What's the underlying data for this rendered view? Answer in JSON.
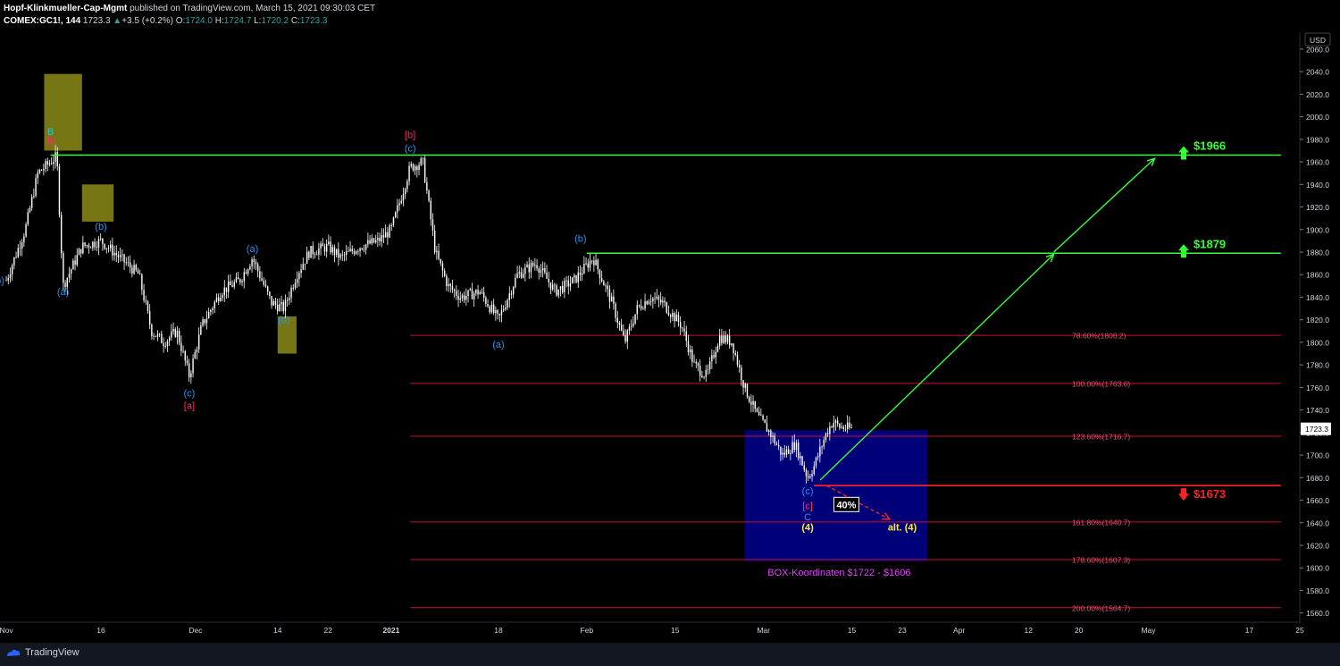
{
  "header": {
    "line1": "Hopf-Klinkmueller-Cap-Mgmt published on TradingView.com, March 15, 2021 09:30:03 CET",
    "publisher": "Hopf-Klinkmueller-Cap-Mgmt",
    "published": "published on TradingView.com, March 15, 2021 09:30:03 CET",
    "symbol": "COMEX:GC1!, 144",
    "last": "1723.3",
    "change": "+3.5 (+0.2%)",
    "o_label": "O:",
    "o": "1724.0",
    "h_label": "H:",
    "h": "1724.7",
    "l_label": "L:",
    "l": "1720.2",
    "c_label": "C:",
    "c": "1723.3"
  },
  "footer": {
    "brand": "TradingView"
  },
  "colors": {
    "candles": "#ffffff",
    "resistance": "#33ff33",
    "support": "#ff2222",
    "fib": "#c8102e",
    "box": "#000080",
    "yellow_box": "#8b8b17",
    "wave_blue": "#2196f3",
    "wave_red": "#ff2e63",
    "wave_yellow": "#ffeb3b",
    "box_text": "#e040fb"
  },
  "chart_data": {
    "type": "candlestick",
    "symbol": "COMEX:GC1!",
    "currency": "USD",
    "y_range": [
      1555,
      2075
    ],
    "y_ticks": [
      2060,
      2040,
      2020,
      2000,
      1980,
      1960,
      1940,
      1920,
      1900,
      1880,
      1860,
      1840,
      1820,
      1800,
      1780,
      1760,
      1740,
      1720,
      1700,
      1680,
      1660,
      1640,
      1620,
      1600,
      1580,
      1560
    ],
    "x_range": [
      "2020-10-31",
      "2021-05-25"
    ],
    "x_ticks": [
      {
        "date": "2020-11-01",
        "label": "Nov"
      },
      {
        "date": "2020-11-16",
        "label": "16"
      },
      {
        "date": "2020-12-01",
        "label": "Dec"
      },
      {
        "date": "2020-12-14",
        "label": "14"
      },
      {
        "date": "2020-12-22",
        "label": "22"
      },
      {
        "date": "2021-01-01",
        "label": "2021"
      },
      {
        "date": "2021-01-18",
        "label": "18"
      },
      {
        "date": "2021-02-01",
        "label": "Feb"
      },
      {
        "date": "2021-02-15",
        "label": "15"
      },
      {
        "date": "2021-03-01",
        "label": "Mar"
      },
      {
        "date": "2021-03-15",
        "label": "15"
      },
      {
        "date": "2021-03-23",
        "label": "23"
      },
      {
        "date": "2021-04-01",
        "label": "Apr"
      },
      {
        "date": "2021-04-12",
        "label": "12"
      },
      {
        "date": "2021-04-20",
        "label": "20"
      },
      {
        "date": "2021-05-01",
        "label": "May"
      },
      {
        "date": "2021-05-17",
        "label": "17"
      },
      {
        "date": "2021-05-25",
        "label": "25"
      }
    ],
    "price_path": [
      [
        "2020-11-01",
        1855
      ],
      [
        "2020-11-04",
        1900
      ],
      [
        "2020-11-06",
        1950
      ],
      [
        "2020-11-09",
        1965
      ],
      [
        "2020-11-10",
        1850
      ],
      [
        "2020-11-13",
        1885
      ],
      [
        "2020-11-16",
        1890
      ],
      [
        "2020-11-19",
        1875
      ],
      [
        "2020-11-22",
        1860
      ],
      [
        "2020-11-24",
        1810
      ],
      [
        "2020-11-26",
        1800
      ],
      [
        "2020-11-28",
        1810
      ],
      [
        "2020-11-30",
        1770
      ],
      [
        "2020-12-02",
        1815
      ],
      [
        "2020-12-05",
        1845
      ],
      [
        "2020-12-08",
        1855
      ],
      [
        "2020-12-10",
        1875
      ],
      [
        "2020-12-13",
        1835
      ],
      [
        "2020-12-15",
        1830
      ],
      [
        "2020-12-17",
        1860
      ],
      [
        "2020-12-19",
        1880
      ],
      [
        "2020-12-22",
        1885
      ],
      [
        "2020-12-24",
        1875
      ],
      [
        "2020-12-27",
        1885
      ],
      [
        "2020-12-30",
        1890
      ],
      [
        "2021-01-01",
        1900
      ],
      [
        "2021-01-04",
        1955
      ],
      [
        "2021-01-06",
        1960
      ],
      [
        "2021-01-08",
        1880
      ],
      [
        "2021-01-10",
        1850
      ],
      [
        "2021-01-12",
        1840
      ],
      [
        "2021-01-15",
        1845
      ],
      [
        "2021-01-18",
        1820
      ],
      [
        "2021-01-21",
        1860
      ],
      [
        "2021-01-24",
        1870
      ],
      [
        "2021-01-27",
        1845
      ],
      [
        "2021-01-30",
        1855
      ],
      [
        "2021-02-02",
        1875
      ],
      [
        "2021-02-05",
        1835
      ],
      [
        "2021-02-07",
        1800
      ],
      [
        "2021-02-09",
        1830
      ],
      [
        "2021-02-11",
        1840
      ],
      [
        "2021-02-13",
        1835
      ],
      [
        "2021-02-16",
        1815
      ],
      [
        "2021-02-18",
        1780
      ],
      [
        "2021-02-20",
        1770
      ],
      [
        "2021-02-22",
        1805
      ],
      [
        "2021-02-24",
        1800
      ],
      [
        "2021-02-26",
        1760
      ],
      [
        "2021-02-28",
        1735
      ],
      [
        "2021-03-02",
        1720
      ],
      [
        "2021-03-04",
        1700
      ],
      [
        "2021-03-06",
        1710
      ],
      [
        "2021-03-08",
        1680
      ],
      [
        "2021-03-09",
        1690
      ],
      [
        "2021-03-11",
        1720
      ],
      [
        "2021-03-12",
        1730
      ],
      [
        "2021-03-13",
        1725
      ],
      [
        "2021-03-15",
        1723.3
      ]
    ],
    "horizontal_lines": [
      {
        "price": 1966,
        "from": "2020-11-08",
        "to": "2021-05-22",
        "color": "#33ff33",
        "label": "$1966",
        "arrow": "up"
      },
      {
        "price": 1879,
        "from": "2021-02-01",
        "to": "2021-05-22",
        "color": "#33ff33",
        "label": "$1879",
        "arrow": "up"
      },
      {
        "price": 1673,
        "from": "2021-03-09",
        "to": "2021-05-22",
        "color": "#ff2222",
        "label": "$1673",
        "arrow": "down"
      }
    ],
    "fib_levels": [
      {
        "label": "78.60%(1806.2)",
        "price": 1806.2
      },
      {
        "label": "100.00%(1763.6)",
        "price": 1763.6
      },
      {
        "label": "123.60%(1716.7)",
        "price": 1716.7
      },
      {
        "label": "161.80%(1640.7)",
        "price": 1640.7
      },
      {
        "label": "178.60%(1607.3)",
        "price": 1607.3
      },
      {
        "label": "200.00%(1564.7)",
        "price": 1564.7
      }
    ],
    "fib_from": "2021-01-04",
    "fib_to": "2021-05-22",
    "projection_arrows": [
      {
        "from": [
          "2021-03-10",
          1678
        ],
        "to": [
          "2021-04-16",
          1878
        ],
        "color": "#33ff33"
      },
      {
        "from": [
          "2021-04-16",
          1880
        ],
        "to": [
          "2021-05-02",
          1963
        ],
        "color": "#33ff33"
      },
      {
        "from": [
          "2021-03-11",
          1673
        ],
        "to": [
          "2021-03-21",
          1643
        ],
        "color": "#ff2222",
        "dashed": true
      }
    ],
    "boxes": [
      {
        "from": [
          "2021-02-26",
          1722
        ],
        "to": [
          "2021-03-27",
          1606
        ],
        "color": "#000080"
      },
      {
        "from": [
          "2020-11-07",
          2038
        ],
        "to": [
          "2020-11-13",
          1970
        ],
        "color": "#8b8b17"
      },
      {
        "from": [
          "2020-11-13",
          1940
        ],
        "to": [
          "2020-11-18",
          1907
        ],
        "color": "#8b8b17"
      },
      {
        "from": [
          "2020-12-14",
          1823
        ],
        "to": [
          "2020-12-17",
          1790
        ],
        "color": "#8b8b17"
      }
    ],
    "annotations": [
      {
        "text": "b)",
        "date": "2020-10-31",
        "price": 1852,
        "color": "#2196f3"
      },
      {
        "text": "B",
        "date": "2020-11-08",
        "price": 1984,
        "color": "#26c6da"
      },
      {
        "text": "[b]",
        "date": "2020-11-08",
        "price": 1976,
        "color": "#ff2e63"
      },
      {
        "text": "(a)",
        "date": "2020-11-10",
        "price": 1842,
        "color": "#2196f3"
      },
      {
        "text": "(b)",
        "date": "2020-11-16",
        "price": 1900,
        "color": "#2196f3"
      },
      {
        "text": "(c)",
        "date": "2020-11-30",
        "price": 1752,
        "color": "#2196f3"
      },
      {
        "text": "[a]",
        "date": "2020-11-30",
        "price": 1741,
        "color": "#ff2e63"
      },
      {
        "text": "(a)",
        "date": "2020-12-10",
        "price": 1880,
        "color": "#2196f3"
      },
      {
        "text": "(b)",
        "date": "2020-12-15",
        "price": 1817,
        "color": "#2196f3"
      },
      {
        "text": "[b]",
        "date": "2021-01-04",
        "price": 1981,
        "color": "#ff2e63"
      },
      {
        "text": "(c)",
        "date": "2021-01-04",
        "price": 1969,
        "color": "#2196f3"
      },
      {
        "text": "(a)",
        "date": "2021-01-18",
        "price": 1795,
        "color": "#2196f3"
      },
      {
        "text": "(b)",
        "date": "2021-01-31",
        "price": 1889,
        "color": "#2196f3"
      },
      {
        "text": "(c)",
        "date": "2021-03-08",
        "price": 1665,
        "color": "#2196f3"
      },
      {
        "text": "[c]",
        "date": "2021-03-08",
        "price": 1652,
        "color": "#ff2e63"
      },
      {
        "text": "C",
        "date": "2021-03-08",
        "price": 1642,
        "color": "#2196f3"
      },
      {
        "text": "(4)",
        "date": "2021-03-08",
        "price": 1633,
        "color": "#ffeb3b"
      },
      {
        "text": "alt. (4)",
        "date": "2021-03-23",
        "price": 1633,
        "color": "#ffeb3b"
      }
    ],
    "percent_label": {
      "text": "40%",
      "date": "2021-03-14",
      "price": 1657
    },
    "box_caption": {
      "text": "BOX-Koordinaten $1722 - $1606",
      "date": "2021-03-13",
      "price": 1593
    },
    "current_price": {
      "label": "1723.3",
      "price": 1723.3
    },
    "axis_unit_label": "USD"
  }
}
